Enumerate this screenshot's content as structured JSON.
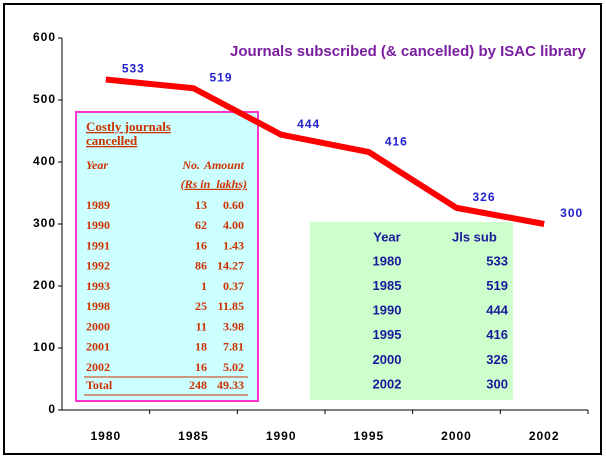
{
  "chart_data": {
    "type": "line",
    "title": "Journals subscribed (& cancelled) by ISAC library",
    "categories": [
      "1980",
      "1985",
      "1990",
      "1995",
      "2000",
      "2002"
    ],
    "values": [
      533,
      519,
      444,
      416,
      326,
      300
    ],
    "color": "#ff0000",
    "ylim": [
      0,
      600
    ],
    "yticks": [
      0,
      100,
      200,
      300,
      400,
      500,
      600
    ],
    "grid": false
  },
  "cancelled_table": {
    "title": "Costly journals cancelled",
    "headers": [
      "Year",
      "No.",
      "Amount"
    ],
    "unit": "(Rs in  lakhs)",
    "rows": [
      [
        "1989",
        "13",
        "0.60"
      ],
      [
        "1990",
        "62",
        "4.00"
      ],
      [
        "1991",
        "16",
        "1.43"
      ],
      [
        "1992",
        "86",
        "14.27"
      ],
      [
        "1993",
        "1",
        "0.37"
      ],
      [
        "1998",
        "25",
        "11.85"
      ],
      [
        "2000",
        "11",
        "3.98"
      ],
      [
        "2001",
        "18",
        "7.81"
      ],
      [
        "2002",
        "16",
        "5.02"
      ]
    ],
    "total": [
      "Total",
      "248",
      "49.33"
    ]
  },
  "subscribed_table": {
    "headers": [
      "Year",
      "Jls sub"
    ],
    "rows": [
      [
        "1980",
        "533"
      ],
      [
        "1985",
        "519"
      ],
      [
        "1990",
        "444"
      ],
      [
        "1995",
        "416"
      ],
      [
        "2000",
        "326"
      ],
      [
        "2002",
        "300"
      ]
    ]
  }
}
